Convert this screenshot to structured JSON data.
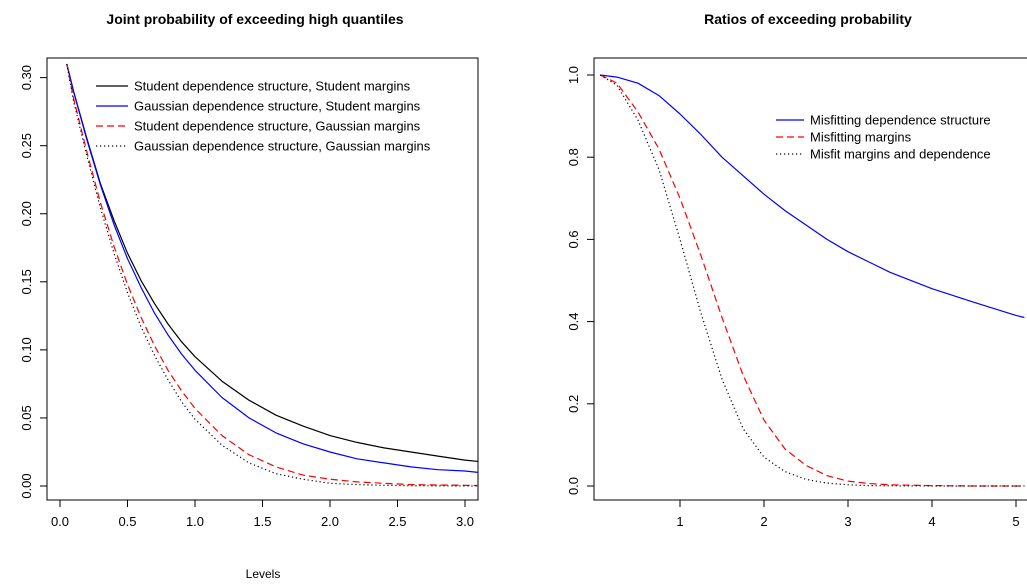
{
  "chart_data": [
    {
      "type": "line",
      "title": "Joint probability of exceeding high quantiles",
      "xlabel": "Levels",
      "ylabel": "",
      "xlim": [
        0.0,
        3.1
      ],
      "ylim": [
        0.0,
        0.31
      ],
      "xticks": [
        "0.0",
        "0.5",
        "1.0",
        "1.5",
        "2.0",
        "2.5",
        "3.0"
      ],
      "yticks": [
        "0.00",
        "0.05",
        "0.10",
        "0.15",
        "0.20",
        "0.25",
        "0.30"
      ],
      "legend_position": "top-right",
      "x": [
        0.05,
        0.1,
        0.2,
        0.3,
        0.4,
        0.5,
        0.6,
        0.7,
        0.8,
        0.9,
        1.0,
        1.2,
        1.4,
        1.6,
        1.8,
        2.0,
        2.2,
        2.4,
        2.6,
        2.8,
        3.0,
        3.1
      ],
      "series": [
        {
          "name": "Student dependence structure, Student margins",
          "color": "#000000",
          "dash": "solid",
          "values": [
            0.31,
            0.29,
            0.255,
            0.222,
            0.195,
            0.171,
            0.151,
            0.134,
            0.119,
            0.106,
            0.095,
            0.077,
            0.063,
            0.052,
            0.044,
            0.037,
            0.032,
            0.028,
            0.025,
            0.022,
            0.019,
            0.018
          ]
        },
        {
          "name": "Gaussian dependence structure, Student margins",
          "color": "#0000ff",
          "dash": "solid",
          "values": [
            0.31,
            0.29,
            0.254,
            0.221,
            0.192,
            0.167,
            0.146,
            0.127,
            0.111,
            0.097,
            0.085,
            0.065,
            0.05,
            0.039,
            0.031,
            0.025,
            0.02,
            0.017,
            0.014,
            0.012,
            0.011,
            0.01
          ]
        },
        {
          "name": "Student dependence structure, Gaussian margins",
          "color": "#ff0000",
          "dash": "dashed",
          "values": [
            0.31,
            0.285,
            0.245,
            0.208,
            0.176,
            0.148,
            0.124,
            0.103,
            0.085,
            0.07,
            0.057,
            0.037,
            0.023,
            0.014,
            0.008,
            0.005,
            0.003,
            0.002,
            0.001,
            0.0007,
            0.0005,
            0.0004
          ]
        },
        {
          "name": "Gaussian dependence structure, Gaussian margins",
          "color": "#000000",
          "dash": "dotted",
          "values": [
            0.31,
            0.283,
            0.242,
            0.204,
            0.171,
            0.142,
            0.117,
            0.096,
            0.078,
            0.062,
            0.049,
            0.03,
            0.017,
            0.009,
            0.005,
            0.002,
            0.001,
            0.0005,
            0.0002,
            0.0001,
            0.0,
            0.0
          ]
        }
      ]
    },
    {
      "type": "line",
      "title": "Ratios of exceeding probability",
      "xlabel": "",
      "ylabel": "",
      "xlim": [
        0.05,
        5.1
      ],
      "ylim": [
        0.0,
        1.0
      ],
      "xticks": [
        "1",
        "2",
        "3",
        "4",
        "5"
      ],
      "yticks": [
        "0.0",
        "0.2",
        "0.4",
        "0.6",
        "0.8",
        "1.0"
      ],
      "legend_position": "top-right",
      "x": [
        0.05,
        0.25,
        0.5,
        0.75,
        1.0,
        1.25,
        1.5,
        1.75,
        2.0,
        2.25,
        2.5,
        2.75,
        3.0,
        3.25,
        3.5,
        4.0,
        4.5,
        5.0,
        5.1
      ],
      "series": [
        {
          "name": "Misfitting dependence structure",
          "color": "#0000ff",
          "dash": "solid",
          "values": [
            1.0,
            0.995,
            0.98,
            0.95,
            0.905,
            0.855,
            0.8,
            0.755,
            0.71,
            0.67,
            0.635,
            0.6,
            0.57,
            0.545,
            0.52,
            0.48,
            0.447,
            0.415,
            0.41
          ]
        },
        {
          "name": "Misfitting margins",
          "color": "#ff0000",
          "dash": "dashed",
          "values": [
            1.0,
            0.98,
            0.91,
            0.82,
            0.7,
            0.56,
            0.41,
            0.27,
            0.16,
            0.09,
            0.05,
            0.025,
            0.012,
            0.006,
            0.003,
            0.001,
            0.0,
            0.0,
            0.0
          ]
        },
        {
          "name": "Misfit margins and dependence",
          "color": "#000000",
          "dash": "dotted",
          "values": [
            1.0,
            0.975,
            0.89,
            0.77,
            0.6,
            0.42,
            0.26,
            0.14,
            0.07,
            0.035,
            0.016,
            0.007,
            0.003,
            0.001,
            0.0005,
            0.0,
            0.0,
            0.0,
            0.0
          ]
        }
      ]
    }
  ]
}
